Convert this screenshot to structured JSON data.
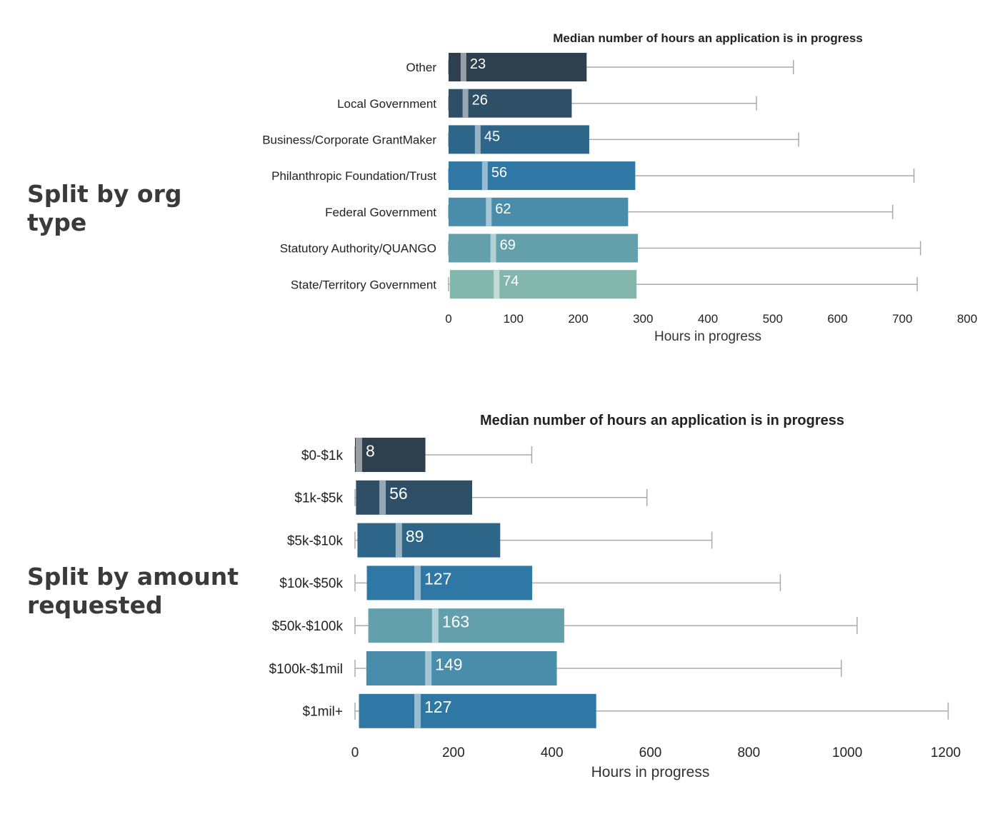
{
  "side_labels": {
    "org_type": "Split by org type",
    "amount": "Split by amount requested"
  },
  "colors": {
    "whisker": "#aaaaaa",
    "palette": [
      "#2e3f4d",
      "#2f4f67",
      "#2e6689",
      "#2f77a4",
      "#4a8daa",
      "#64a0ab",
      "#83b7ad"
    ]
  },
  "chart_data": [
    {
      "type": "box",
      "title": "Median number of hours an application is in progress",
      "xlabel": "Hours in progress",
      "ylabel": "",
      "xlim": [
        0,
        800
      ],
      "ticks": [
        0,
        100,
        200,
        300,
        400,
        500,
        600,
        700,
        800
      ],
      "categories": [
        "Other",
        "Local Government",
        "Business/Corporate GrantMaker",
        "Philanthropic Foundation/Trust",
        "Federal Government",
        "Statutory Authority/QUANGO",
        "State/Territory Government"
      ],
      "whisker_low": [
        0,
        0,
        0,
        0,
        0,
        0,
        0
      ],
      "q1": [
        0,
        0,
        0,
        0,
        0,
        0,
        2
      ],
      "median": [
        23,
        26,
        45,
        56,
        62,
        69,
        74
      ],
      "q3": [
        213,
        190,
        217,
        288,
        277,
        292,
        290
      ],
      "whisker_high": [
        532,
        475,
        540,
        718,
        685,
        728,
        723
      ],
      "median_labels": [
        "23",
        "26",
        "45",
        "56",
        "62",
        "69",
        "74"
      ],
      "color_index": [
        0,
        1,
        2,
        3,
        4,
        5,
        6
      ]
    },
    {
      "type": "box",
      "title": "Median number of hours an application is in progress",
      "xlabel": "Hours in progress",
      "ylabel": "",
      "xlim": [
        0,
        1200
      ],
      "ticks": [
        0,
        200,
        400,
        600,
        800,
        1000,
        1200
      ],
      "categories": [
        "$0-$1k",
        "$1k-$5k",
        "$5k-$10k",
        "$10k-$50k",
        "$50k-$100k",
        "$100k-$1mil",
        "$1mil+"
      ],
      "whisker_low": [
        0,
        0,
        0,
        0,
        0,
        0,
        0
      ],
      "q1": [
        0,
        2,
        5,
        24,
        27,
        23,
        8
      ],
      "median": [
        8,
        56,
        89,
        127,
        163,
        149,
        127
      ],
      "q3": [
        143,
        238,
        295,
        360,
        425,
        410,
        490
      ],
      "whisker_high": [
        359,
        593,
        725,
        864,
        1020,
        988,
        1205
      ],
      "median_labels": [
        "8",
        "56",
        "89",
        "127",
        "163",
        "149",
        "127"
      ],
      "color_index": [
        0,
        1,
        2,
        3,
        5,
        4,
        3
      ]
    }
  ]
}
